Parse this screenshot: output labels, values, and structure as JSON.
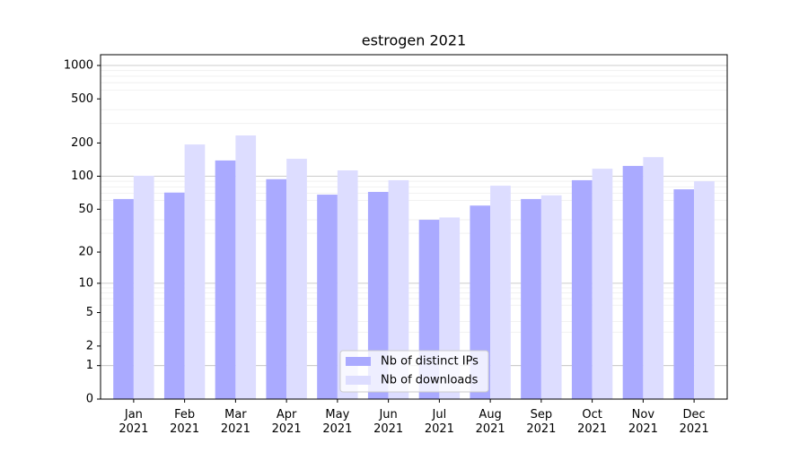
{
  "chart_data": {
    "type": "bar",
    "title": "estrogen 2021",
    "categories": [
      "Jan\n2021",
      "Feb\n2021",
      "Mar\n2021",
      "Apr\n2021",
      "May\n2021",
      "Jun\n2021",
      "Jul\n2021",
      "Aug\n2021",
      "Sep\n2021",
      "Oct\n2021",
      "Nov\n2021",
      "Dec\n2021"
    ],
    "series": [
      {
        "name": "Nb of distinct IPs",
        "color": "#aaaaff",
        "values": [
          62,
          71,
          139,
          94,
          68,
          72,
          40,
          54,
          62,
          92,
          124,
          76
        ]
      },
      {
        "name": "Nb of downloads",
        "color": "#ddddff",
        "values": [
          101,
          194,
          234,
          144,
          113,
          92,
          42,
          82,
          67,
          117,
          149,
          90
        ]
      }
    ],
    "yscale": "log1p",
    "ylim": [
      0,
      1250
    ],
    "yticks": [
      0,
      1,
      2,
      5,
      10,
      20,
      50,
      100,
      200,
      500,
      1000
    ],
    "ymajorgrid": [
      1,
      10,
      100,
      1000
    ],
    "yminorgrid": [
      3,
      4,
      6,
      7,
      8,
      9,
      30,
      40,
      60,
      70,
      80,
      90,
      300,
      400,
      600,
      700,
      800,
      900
    ],
    "grid": true,
    "legend": "lower center"
  }
}
